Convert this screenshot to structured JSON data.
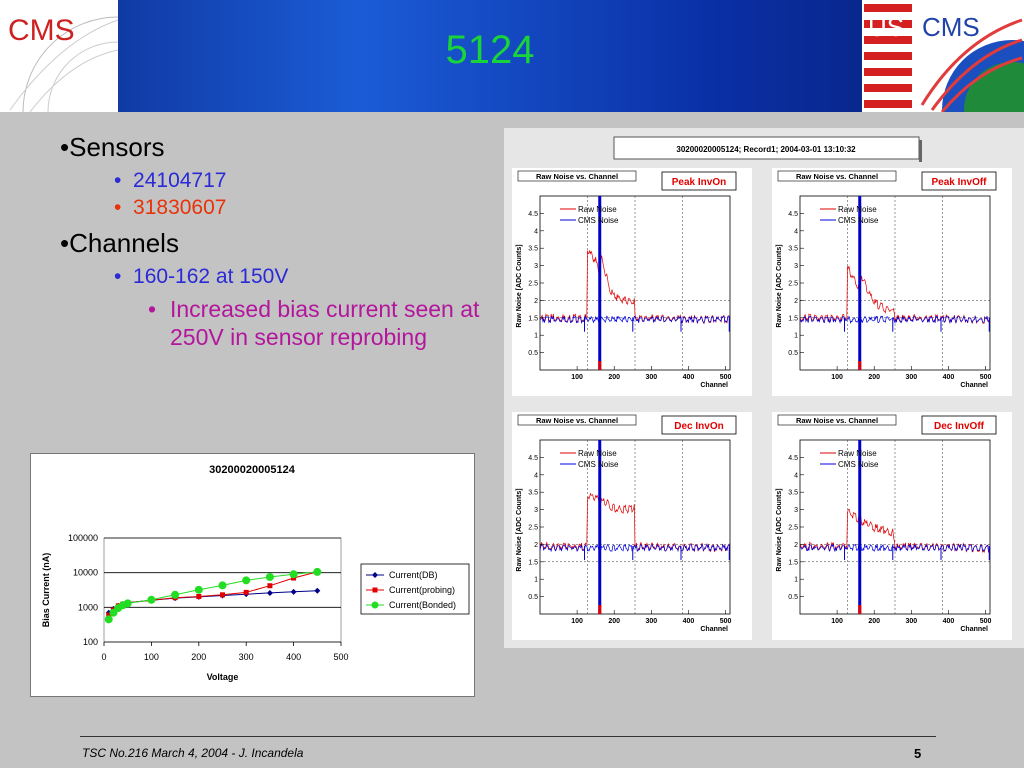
{
  "slide": {
    "title": "5124",
    "logo_left": "CMS",
    "logo_right_us": "US",
    "logo_right_cms": "CMS",
    "colors": {
      "title": "#19d33a",
      "header": "#1b5cd6",
      "blue_text": "#2a2ad6",
      "red_text": "#e8320a",
      "purple_text": "#b3169c"
    }
  },
  "bullets": {
    "sensors": "•Sensors",
    "sensor_1": "24104717",
    "sensor_2": "31830607",
    "channels": "•Channels",
    "channel_range": "160-162 at 150V",
    "note": "Increased bias current seen at 250V in sensor reprobing"
  },
  "footer": {
    "text": "TSC No.216 March 4, 2004 - J. Incandela",
    "page": "5"
  },
  "chart_data": [
    {
      "type": "line",
      "title": "30200020005124",
      "xlabel": "Voltage",
      "ylabel": "Bias Current (nA)",
      "xlim": [
        0,
        500
      ],
      "ylim": [
        100,
        100000
      ],
      "yscale": "log",
      "x_ticks": [
        "0",
        "100",
        "200",
        "300",
        "400",
        "500"
      ],
      "y_ticks": [
        "100",
        "1000",
        "10000",
        "100000"
      ],
      "legend_position": "right",
      "series": [
        {
          "name": "Current(DB)",
          "color": "#00008b",
          "marker": "diamond",
          "x": [
            10,
            20,
            30,
            40,
            50,
            100,
            150,
            200,
            250,
            300,
            350,
            400,
            450
          ],
          "y": [
            700,
            900,
            1100,
            1250,
            1350,
            1600,
            1850,
            2000,
            2200,
            2400,
            2600,
            2800,
            3000
          ]
        },
        {
          "name": "Current(probing)",
          "color": "#e00000",
          "marker": "square",
          "x": [
            10,
            20,
            30,
            40,
            50,
            100,
            150,
            200,
            250,
            300,
            350,
            400,
            450
          ],
          "y": [
            600,
            850,
            1100,
            1250,
            1350,
            1600,
            1900,
            2050,
            2300,
            2700,
            4200,
            7000,
            10500
          ]
        },
        {
          "name": "Current(Bonded)",
          "color": "#22dd22",
          "marker": "circle",
          "x": [
            10,
            20,
            30,
            40,
            50,
            100,
            150,
            200,
            250,
            300,
            350,
            400,
            450
          ],
          "y": [
            450,
            700,
            950,
            1150,
            1300,
            1650,
            2300,
            3200,
            4300,
            6000,
            7500,
            9000,
            10500
          ]
        }
      ]
    },
    {
      "type": "line",
      "header_title": "30200020005124; Record1; 2004-03-01 13:10:32",
      "panels": [
        {
          "title": "Raw Noise vs. Channel",
          "tag": "Peak InvOn",
          "xlabel": "Channel",
          "ylabel": "Raw Noise [ADC Counts]",
          "xlim": [
            0,
            512
          ],
          "ylim": [
            0,
            5
          ],
          "x_ticks": [
            "100",
            "200",
            "300",
            "400",
            "500"
          ],
          "y_ticks": [
            "0.5",
            "1",
            "1.5",
            "2",
            "2.5",
            "3",
            "3.5",
            "4",
            "4.5"
          ],
          "legend": [
            "Raw Noise",
            "CMS Noise"
          ],
          "raw_profile": [
            [
              0,
              1.55
            ],
            [
              127,
              1.55
            ],
            [
              128,
              3.5
            ],
            [
              150,
              3.2
            ],
            [
              160,
              2.9
            ],
            [
              165,
              3.3
            ],
            [
              190,
              2.3
            ],
            [
              210,
              2.1
            ],
            [
              255,
              2.0
            ],
            [
              256,
              1.55
            ],
            [
              512,
              1.5
            ]
          ],
          "cms_level": 1.5
        },
        {
          "title": "Raw Noise vs. Channel",
          "tag": "Peak InvOff",
          "xlabel": "Channel",
          "ylabel": "Raw Noise [ADC Counts]",
          "xlim": [
            0,
            512
          ],
          "ylim": [
            0,
            5
          ],
          "x_ticks": [
            "100",
            "200",
            "300",
            "400",
            "500"
          ],
          "y_ticks": [
            "0.5",
            "1",
            "1.5",
            "2",
            "2.5",
            "3",
            "3.5",
            "4",
            "4.5"
          ],
          "legend": [
            "Raw Noise",
            "CMS Noise"
          ],
          "raw_profile": [
            [
              0,
              1.55
            ],
            [
              127,
              1.55
            ],
            [
              128,
              3.0
            ],
            [
              145,
              2.7
            ],
            [
              160,
              2.4
            ],
            [
              165,
              2.8
            ],
            [
              180,
              2.4
            ],
            [
              200,
              2.0
            ],
            [
              230,
              1.8
            ],
            [
              255,
              1.75
            ],
            [
              256,
              1.55
            ],
            [
              512,
              1.5
            ]
          ],
          "cms_level": 1.5
        },
        {
          "title": "Raw Noise vs. Channel",
          "tag": "Dec InvOn",
          "xlabel": "Channel",
          "ylabel": "Raw Noise [ADC Counts]",
          "xlim": [
            0,
            512
          ],
          "ylim": [
            0,
            5
          ],
          "x_ticks": [
            "100",
            "200",
            "300",
            "400",
            "500"
          ],
          "y_ticks": [
            "0.5",
            "1",
            "1.5",
            "2",
            "2.5",
            "3",
            "3.5",
            "4",
            "4.5"
          ],
          "legend": [
            "Raw Noise",
            "CMS Noise"
          ],
          "raw_profile": [
            [
              0,
              2.0
            ],
            [
              127,
              2.0
            ],
            [
              128,
              3.5
            ],
            [
              170,
              3.3
            ],
            [
              210,
              3.05
            ],
            [
              255,
              3.1
            ],
            [
              256,
              2.0
            ],
            [
              512,
              1.95
            ]
          ],
          "cms_level": 1.95
        },
        {
          "title": "Raw Noise vs. Channel",
          "tag": "Dec InvOff",
          "xlabel": "Channel",
          "ylabel": "Raw Noise [ADC Counts]",
          "xlim": [
            0,
            512
          ],
          "ylim": [
            0,
            5
          ],
          "x_ticks": [
            "100",
            "200",
            "300",
            "400",
            "500"
          ],
          "y_ticks": [
            "0.5",
            "1",
            "1.5",
            "2",
            "2.5",
            "3",
            "3.5",
            "4",
            "4.5"
          ],
          "legend": [
            "Raw Noise",
            "CMS Noise"
          ],
          "raw_profile": [
            [
              0,
              2.0
            ],
            [
              127,
              2.0
            ],
            [
              128,
              3.0
            ],
            [
              160,
              2.75
            ],
            [
              200,
              2.55
            ],
            [
              250,
              2.4
            ],
            [
              256,
              2.0
            ],
            [
              512,
              1.95
            ]
          ],
          "cms_level": 1.95
        }
      ]
    }
  ]
}
